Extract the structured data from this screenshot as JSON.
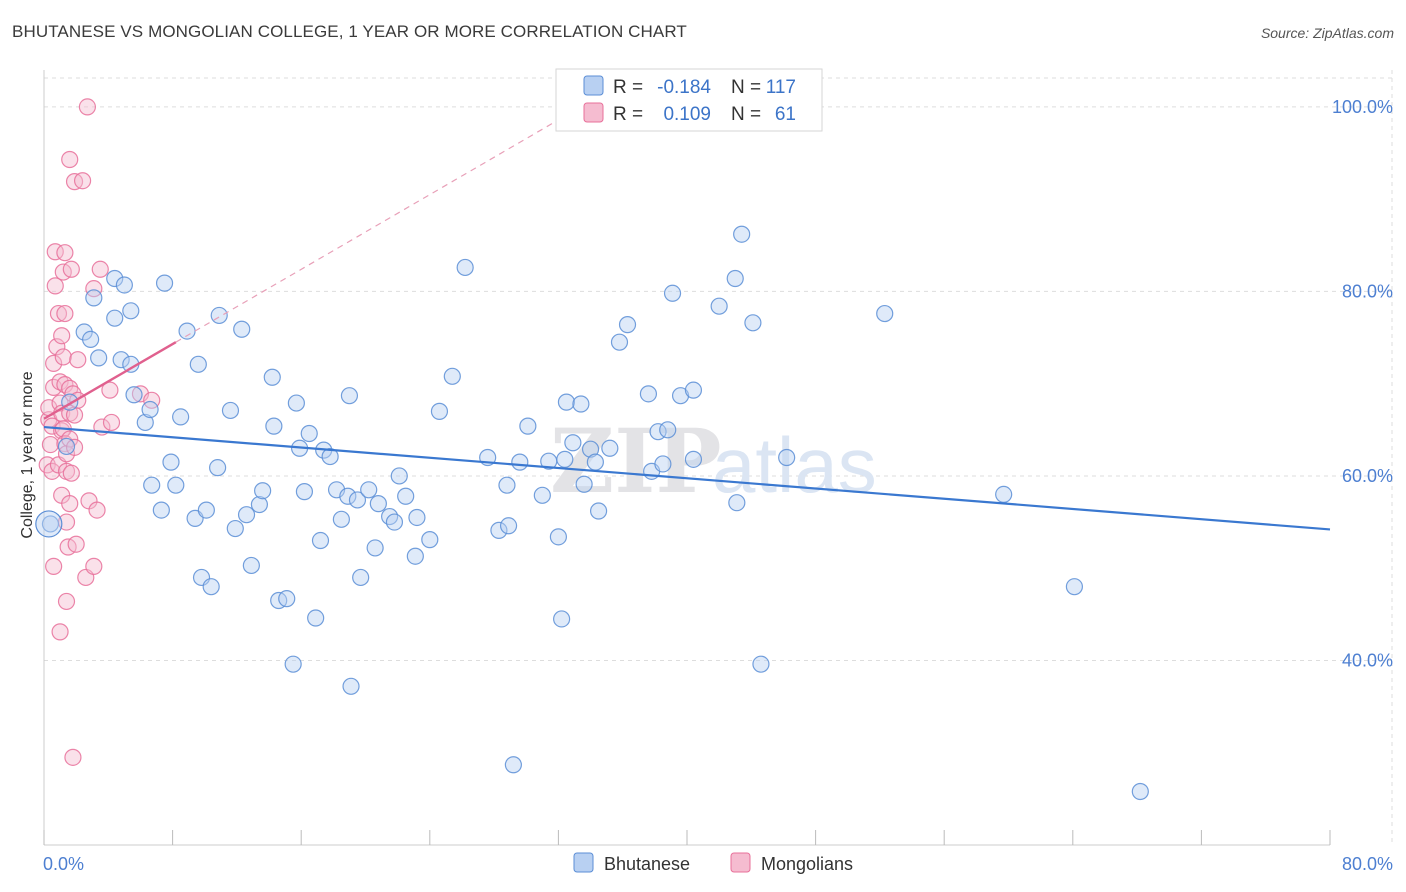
{
  "title": "BHUTANESE VS MONGOLIAN COLLEGE, 1 YEAR OR MORE CORRELATION CHART",
  "source": "Source: ZipAtlas.com",
  "watermark": "ZIPatlas",
  "colors": {
    "bhutanese": "#5b8ed6",
    "bhutanese_fill": "#b8d0f2",
    "mongolians": "#e8709a",
    "mongolians_fill": "#f5bcd0",
    "tick_text": "#4d7fd1",
    "grid": "#dddddd"
  },
  "legend": {
    "rows": [
      {
        "r_label": "R =",
        "r_value": "-0.184",
        "n_label": "N =",
        "n_value": "117"
      },
      {
        "r_label": "R =",
        "r_value": "0.109",
        "n_label": "N =",
        "n_value": "61"
      }
    ]
  },
  "chart_data": {
    "type": "scatter",
    "title": "BHUTANESE VS MONGOLIAN COLLEGE, 1 YEAR OR MORE CORRELATION CHART",
    "xlabel": "",
    "ylabel": "College, 1 year or more",
    "xlim": [
      0,
      80
    ],
    "ylim": [
      20,
      104
    ],
    "x_tick_labels": [
      "0.0%",
      "80.0%"
    ],
    "y_tick_labels": [
      "40.0%",
      "60.0%",
      "80.0%",
      "100.0%"
    ],
    "y_ticks": [
      40,
      60,
      80,
      100
    ],
    "grid": true,
    "legend_position": "bottom",
    "series": [
      {
        "name": "Bhutanese",
        "r": -0.184,
        "n": 117,
        "trend": {
          "x0": 0,
          "y0": 65.3,
          "x1": 80,
          "y1": 54.2
        },
        "points": [
          [
            0.4,
            54.8
          ],
          [
            1.4,
            63.2
          ],
          [
            1.6,
            68.0
          ],
          [
            2.5,
            75.6
          ],
          [
            2.9,
            74.8
          ],
          [
            3.1,
            79.3
          ],
          [
            3.4,
            72.8
          ],
          [
            4.4,
            81.4
          ],
          [
            4.4,
            77.1
          ],
          [
            4.8,
            72.6
          ],
          [
            5.0,
            80.7
          ],
          [
            5.4,
            77.9
          ],
          [
            5.4,
            72.1
          ],
          [
            5.6,
            68.8
          ],
          [
            6.3,
            65.8
          ],
          [
            6.6,
            67.2
          ],
          [
            6.7,
            59.0
          ],
          [
            7.3,
            56.3
          ],
          [
            7.5,
            80.9
          ],
          [
            7.9,
            61.5
          ],
          [
            8.2,
            59.0
          ],
          [
            8.5,
            66.4
          ],
          [
            8.9,
            75.7
          ],
          [
            9.4,
            55.4
          ],
          [
            9.6,
            72.1
          ],
          [
            9.8,
            49.0
          ],
          [
            10.1,
            56.3
          ],
          [
            10.4,
            48.0
          ],
          [
            10.8,
            60.9
          ],
          [
            10.9,
            77.4
          ],
          [
            11.6,
            67.1
          ],
          [
            11.9,
            54.3
          ],
          [
            12.3,
            75.9
          ],
          [
            12.6,
            55.8
          ],
          [
            12.9,
            50.3
          ],
          [
            13.4,
            56.9
          ],
          [
            13.6,
            58.4
          ],
          [
            14.2,
            70.7
          ],
          [
            14.3,
            65.4
          ],
          [
            14.6,
            46.5
          ],
          [
            15.1,
            46.7
          ],
          [
            15.5,
            39.6
          ],
          [
            15.7,
            67.9
          ],
          [
            15.9,
            63.0
          ],
          [
            16.2,
            58.3
          ],
          [
            16.5,
            64.6
          ],
          [
            16.9,
            44.6
          ],
          [
            17.2,
            53.0
          ],
          [
            17.4,
            62.8
          ],
          [
            17.8,
            62.1
          ],
          [
            18.2,
            58.5
          ],
          [
            18.5,
            55.3
          ],
          [
            18.9,
            57.8
          ],
          [
            19.0,
            68.7
          ],
          [
            19.1,
            37.2
          ],
          [
            19.5,
            57.4
          ],
          [
            19.7,
            49.0
          ],
          [
            20.2,
            58.5
          ],
          [
            20.6,
            52.2
          ],
          [
            20.8,
            57.0
          ],
          [
            21.5,
            55.6
          ],
          [
            21.8,
            55.0
          ],
          [
            22.1,
            60.0
          ],
          [
            22.5,
            57.8
          ],
          [
            23.1,
            51.3
          ],
          [
            23.2,
            55.5
          ],
          [
            24.0,
            53.1
          ],
          [
            24.6,
            67.0
          ],
          [
            25.4,
            70.8
          ],
          [
            26.2,
            82.6
          ],
          [
            27.6,
            62.0
          ],
          [
            28.3,
            54.1
          ],
          [
            28.8,
            59.0
          ],
          [
            28.9,
            54.6
          ],
          [
            29.2,
            28.7
          ],
          [
            29.6,
            61.5
          ],
          [
            30.1,
            65.4
          ],
          [
            31.0,
            57.9
          ],
          [
            31.4,
            61.6
          ],
          [
            32.0,
            53.4
          ],
          [
            32.2,
            44.5
          ],
          [
            32.4,
            61.8
          ],
          [
            32.5,
            68.0
          ],
          [
            32.9,
            63.6
          ],
          [
            33.4,
            67.8
          ],
          [
            33.6,
            59.1
          ],
          [
            34.0,
            62.9
          ],
          [
            34.3,
            61.5
          ],
          [
            34.5,
            56.2
          ],
          [
            35.2,
            63.0
          ],
          [
            35.8,
            74.5
          ],
          [
            36.3,
            76.4
          ],
          [
            37.6,
            68.9
          ],
          [
            37.8,
            60.5
          ],
          [
            38.2,
            64.8
          ],
          [
            38.5,
            61.3
          ],
          [
            38.8,
            65.0
          ],
          [
            39.1,
            79.8
          ],
          [
            39.6,
            68.7
          ],
          [
            40.4,
            69.3
          ],
          [
            40.4,
            61.8
          ],
          [
            42.0,
            78.4
          ],
          [
            43.0,
            81.4
          ],
          [
            43.1,
            57.1
          ],
          [
            43.4,
            86.2
          ],
          [
            44.1,
            76.6
          ],
          [
            44.6,
            39.6
          ],
          [
            46.2,
            62.0
          ],
          [
            52.3,
            77.6
          ],
          [
            59.7,
            58.0
          ],
          [
            64.1,
            48.0
          ],
          [
            68.2,
            25.8
          ]
        ]
      },
      {
        "name": "Mongolians",
        "r": 0.109,
        "n": 61,
        "trend": {
          "x0": 0,
          "y0": 66.2,
          "x1": 8.2,
          "y1": 74.5
        },
        "points": [
          [
            0.2,
            61.2
          ],
          [
            0.3,
            66.1
          ],
          [
            0.3,
            67.4
          ],
          [
            0.4,
            63.4
          ],
          [
            0.5,
            65.4
          ],
          [
            0.5,
            60.5
          ],
          [
            0.6,
            50.2
          ],
          [
            0.6,
            72.2
          ],
          [
            0.6,
            69.6
          ],
          [
            0.7,
            84.3
          ],
          [
            0.7,
            80.6
          ],
          [
            0.8,
            74.0
          ],
          [
            0.9,
            77.6
          ],
          [
            0.9,
            61.2
          ],
          [
            1.0,
            43.1
          ],
          [
            1.0,
            70.2
          ],
          [
            1.0,
            67.9
          ],
          [
            1.1,
            75.2
          ],
          [
            1.1,
            66.8
          ],
          [
            1.1,
            64.9
          ],
          [
            1.1,
            57.9
          ],
          [
            1.2,
            82.1
          ],
          [
            1.2,
            72.9
          ],
          [
            1.2,
            65.1
          ],
          [
            1.3,
            84.2
          ],
          [
            1.3,
            77.6
          ],
          [
            1.3,
            69.9
          ],
          [
            1.3,
            63.5
          ],
          [
            1.4,
            60.5
          ],
          [
            1.4,
            55.0
          ],
          [
            1.4,
            46.4
          ],
          [
            1.4,
            62.4
          ],
          [
            1.5,
            52.3
          ],
          [
            1.6,
            69.5
          ],
          [
            1.6,
            64.0
          ],
          [
            1.6,
            57.0
          ],
          [
            1.6,
            94.3
          ],
          [
            1.6,
            66.8
          ],
          [
            1.7,
            82.4
          ],
          [
            1.7,
            60.3
          ],
          [
            1.8,
            29.5
          ],
          [
            1.8,
            68.9
          ],
          [
            1.9,
            91.9
          ],
          [
            1.9,
            66.6
          ],
          [
            1.9,
            63.1
          ],
          [
            2.0,
            52.6
          ],
          [
            2.1,
            72.6
          ],
          [
            2.1,
            68.2
          ],
          [
            2.4,
            92.0
          ],
          [
            2.6,
            49.0
          ],
          [
            2.7,
            100.0
          ],
          [
            2.8,
            57.3
          ],
          [
            3.1,
            80.3
          ],
          [
            3.1,
            50.2
          ],
          [
            3.3,
            56.3
          ],
          [
            3.5,
            82.4
          ],
          [
            3.6,
            65.3
          ],
          [
            4.1,
            69.3
          ],
          [
            4.2,
            65.8
          ],
          [
            6.0,
            68.9
          ],
          [
            6.7,
            68.2
          ]
        ]
      }
    ]
  },
  "bottom_legend": {
    "items": [
      {
        "label": "Bhutanese"
      },
      {
        "label": "Mongolians"
      }
    ]
  }
}
